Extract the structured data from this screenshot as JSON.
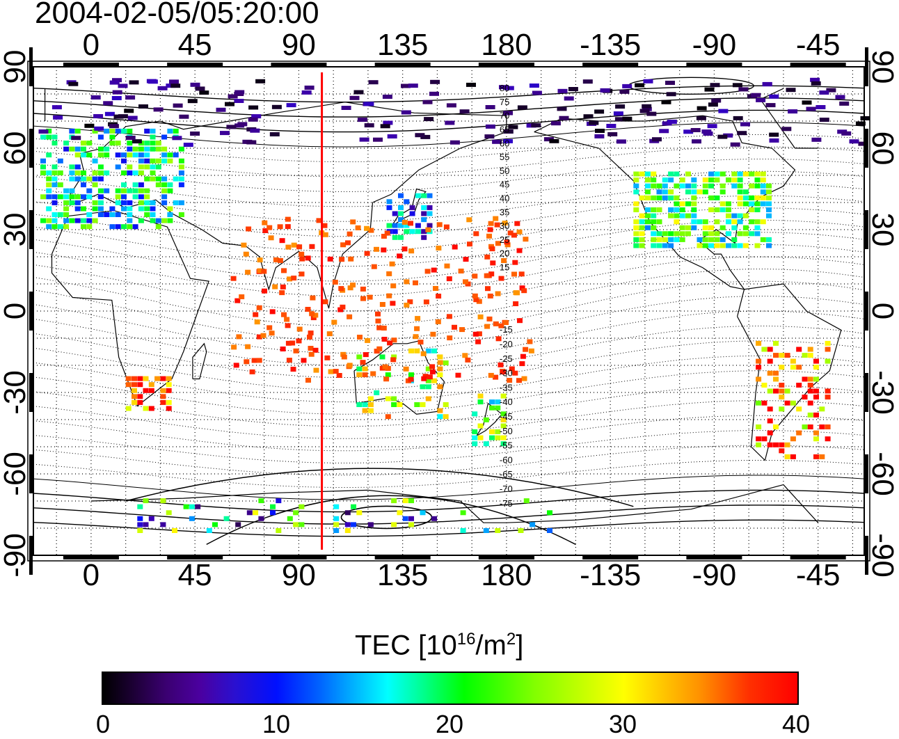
{
  "timestamp": "2004-02-05/05:20:00",
  "longitude_ticks": [
    "0",
    "45",
    "90",
    "135",
    "180",
    "-135",
    "-90",
    "-45"
  ],
  "latitude_ticks": [
    "90",
    "60",
    "30",
    "0",
    "-30",
    "-60",
    "-90"
  ],
  "contour_labels_north": [
    "80",
    "75",
    "70",
    "65",
    "60",
    "55",
    "50",
    "45",
    "40",
    "35",
    "30",
    "25",
    "20",
    "15"
  ],
  "contour_labels_south": [
    "-15",
    "-20",
    "-25",
    "-30",
    "-35",
    "-40",
    "-45",
    "-50",
    "-55",
    "-60",
    "-65",
    "-70",
    "-75"
  ],
  "colorbar": {
    "title": "TEC  [10",
    "title_exp": "16",
    "title_unit": "/m",
    "title_unit_exp": "2",
    "title_close": "]",
    "tick_labels": [
      "0",
      "10",
      "20",
      "30",
      "40"
    ],
    "min": 0,
    "max": 40
  },
  "marker_longitude_deg": 100,
  "colors": {
    "marker": "#ff0000",
    "frame": "#000000"
  },
  "tec_regions": [
    {
      "name": "europe",
      "level": 18
    },
    {
      "name": "north-america",
      "level": 22
    },
    {
      "name": "japan",
      "level": 13
    },
    {
      "name": "southern-africa",
      "level": 38
    },
    {
      "name": "australia",
      "level": 26
    },
    {
      "name": "new-zealand",
      "level": 24
    },
    {
      "name": "south-america",
      "level": 36
    },
    {
      "name": "antarctica",
      "level": 17
    }
  ]
}
